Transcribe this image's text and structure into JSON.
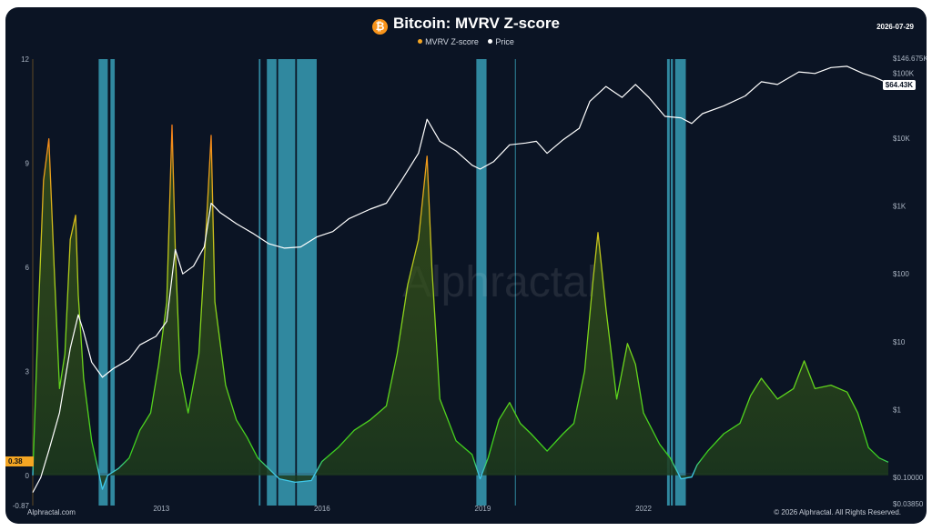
{
  "header": {
    "icon": "bitcoin-icon",
    "title": "Bitcoin: MVRV Z-score",
    "date": "2026-07-29"
  },
  "legend": {
    "items": [
      {
        "label": "MVRV Z-score",
        "color": "#f5a623"
      },
      {
        "label": "Price",
        "color": "#ffffff"
      }
    ]
  },
  "badges": {
    "zscore_current": "0.38",
    "price_current": "$64.43K"
  },
  "footer": {
    "left": "Alphractal.com",
    "right": "© 2026 Alphractal. All Rights Reserved."
  },
  "watermark": "Alphractal",
  "colors": {
    "background": "#0b1424",
    "undervalued_zone": "#3fb6cf",
    "zscore_low": "#3ad11f",
    "zscore_high": "#ff6a1a",
    "price_line": "#ffffff"
  },
  "chart_data": {
    "type": "line",
    "title": "Bitcoin: MVRV Z-score",
    "x_tick_labels": [
      "2013",
      "2016",
      "2019",
      "2022"
    ],
    "x_range": [
      2010.6,
      2026.57
    ],
    "left_axis": {
      "label": "",
      "ticks": [
        "12",
        "9",
        "6",
        "3",
        "0",
        "-0.87"
      ],
      "range": [
        -0.87,
        12
      ]
    },
    "right_axis": {
      "label": "",
      "scale": "log",
      "ticks": [
        "$146.675K",
        "$100K",
        "$10K",
        "$1K",
        "$100",
        "$10",
        "$1",
        "$0.10000",
        "$0.03850"
      ],
      "range": [
        0.0385,
        146675
      ]
    },
    "series": [
      {
        "name": "MVRV Z-score",
        "axis": "left",
        "x": [
          2010.6,
          2010.7,
          2010.8,
          2010.9,
          2011.0,
          2011.1,
          2011.2,
          2011.3,
          2011.4,
          2011.45,
          2011.55,
          2011.7,
          2011.9,
          2012.0,
          2012.2,
          2012.4,
          2012.6,
          2012.8,
          2012.95,
          2013.1,
          2013.2,
          2013.26,
          2013.35,
          2013.5,
          2013.7,
          2013.85,
          2013.93,
          2014.0,
          2014.2,
          2014.4,
          2014.6,
          2014.8,
          2015.0,
          2015.2,
          2015.5,
          2015.8,
          2016.0,
          2016.3,
          2016.6,
          2016.9,
          2017.2,
          2017.4,
          2017.6,
          2017.8,
          2017.96,
          2018.05,
          2018.2,
          2018.5,
          2018.8,
          2018.95,
          2019.1,
          2019.3,
          2019.5,
          2019.7,
          2019.9,
          2020.2,
          2020.5,
          2020.7,
          2020.9,
          2021.05,
          2021.15,
          2021.3,
          2021.5,
          2021.7,
          2021.85,
          2022.0,
          2022.3,
          2022.5,
          2022.7,
          2022.9,
          2023.0,
          2023.2,
          2023.5,
          2023.8,
          2024.0,
          2024.2,
          2024.5,
          2024.8,
          2025.0,
          2025.2,
          2025.5,
          2025.8,
          2026.0,
          2026.2,
          2026.4,
          2026.57
        ],
        "y": [
          0.0,
          4.5,
          8.5,
          9.7,
          6.0,
          2.5,
          3.5,
          6.8,
          7.5,
          5.2,
          2.8,
          1.0,
          -0.4,
          0.0,
          0.2,
          0.5,
          1.3,
          1.8,
          3.2,
          5.0,
          10.1,
          6.5,
          3.0,
          1.8,
          3.5,
          7.5,
          9.8,
          5.0,
          2.6,
          1.6,
          1.1,
          0.5,
          0.2,
          -0.1,
          -0.2,
          -0.15,
          0.4,
          0.8,
          1.3,
          1.6,
          2.0,
          3.5,
          5.5,
          6.8,
          9.2,
          6.0,
          2.2,
          1.0,
          0.6,
          -0.1,
          0.5,
          1.6,
          2.1,
          1.5,
          1.2,
          0.7,
          1.2,
          1.5,
          3.0,
          5.5,
          7.0,
          4.8,
          2.2,
          3.8,
          3.2,
          1.8,
          0.9,
          0.5,
          -0.1,
          -0.05,
          0.3,
          0.7,
          1.2,
          1.5,
          2.3,
          2.8,
          2.2,
          2.5,
          3.3,
          2.5,
          2.6,
          2.4,
          1.8,
          0.8,
          0.5,
          0.38
        ]
      },
      {
        "name": "Price",
        "axis": "right",
        "x": [
          2010.6,
          2010.75,
          2010.9,
          2011.1,
          2011.3,
          2011.45,
          2011.55,
          2011.7,
          2011.9,
          2012.1,
          2012.4,
          2012.6,
          2012.9,
          2013.1,
          2013.26,
          2013.4,
          2013.6,
          2013.8,
          2013.93,
          2014.1,
          2014.4,
          2014.7,
          2015.0,
          2015.3,
          2015.6,
          2015.9,
          2016.2,
          2016.5,
          2016.9,
          2017.2,
          2017.5,
          2017.8,
          2017.96,
          2018.2,
          2018.5,
          2018.8,
          2018.95,
          2019.2,
          2019.5,
          2019.8,
          2020.0,
          2020.2,
          2020.5,
          2020.8,
          2021.0,
          2021.3,
          2021.6,
          2021.85,
          2022.1,
          2022.4,
          2022.7,
          2022.9,
          2023.1,
          2023.5,
          2023.9,
          2024.2,
          2024.5,
          2024.9,
          2025.2,
          2025.5,
          2025.8,
          2026.1,
          2026.3,
          2026.57
        ],
        "y": [
          0.06,
          0.1,
          0.25,
          0.9,
          8,
          25,
          14,
          5,
          3,
          4,
          5.5,
          9,
          12,
          20,
          230,
          100,
          130,
          250,
          1100,
          800,
          550,
          400,
          280,
          240,
          250,
          350,
          420,
          650,
          900,
          1100,
          2500,
          6000,
          19000,
          9000,
          6500,
          4000,
          3500,
          4500,
          8000,
          8500,
          9000,
          6000,
          9500,
          14000,
          35000,
          58000,
          40000,
          62000,
          40000,
          21000,
          20000,
          16500,
          23000,
          30000,
          42000,
          68000,
          62000,
          95000,
          90000,
          110000,
          115000,
          90000,
          80000,
          64430
        ]
      }
    ],
    "undervalued_zones": [
      [
        2011.83,
        2012.0
      ],
      [
        2012.05,
        2012.13
      ],
      [
        2014.82,
        2014.85
      ],
      [
        2014.97,
        2015.15
      ],
      [
        2015.18,
        2015.5
      ],
      [
        2015.53,
        2015.9
      ],
      [
        2018.88,
        2019.07
      ],
      [
        2019.6,
        2019.61
      ],
      [
        2022.44,
        2022.49
      ],
      [
        2022.51,
        2022.55
      ],
      [
        2022.59,
        2022.79
      ]
    ],
    "annotations": [
      "0.38",
      "$64.43K"
    ],
    "grid": false,
    "legend_position": "top"
  }
}
